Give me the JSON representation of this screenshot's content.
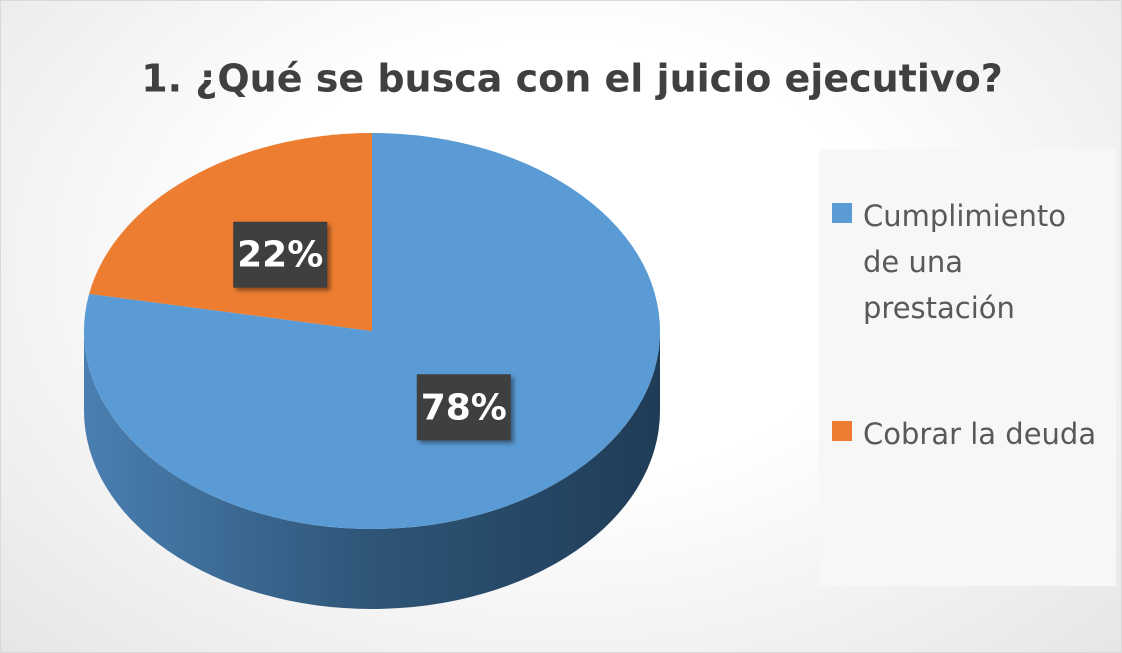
{
  "chart_data": {
    "type": "pie",
    "title": "1. ¿Qué se busca con el juicio ejecutivo?",
    "categories": [
      "Cumplimiento de una prestación",
      "Cobrar la deuda"
    ],
    "values": [
      78,
      22
    ],
    "value_labels": [
      "78%",
      "22%"
    ],
    "colors": [
      "#5b9bd5",
      "#ed7d31"
    ],
    "legend": "right"
  }
}
